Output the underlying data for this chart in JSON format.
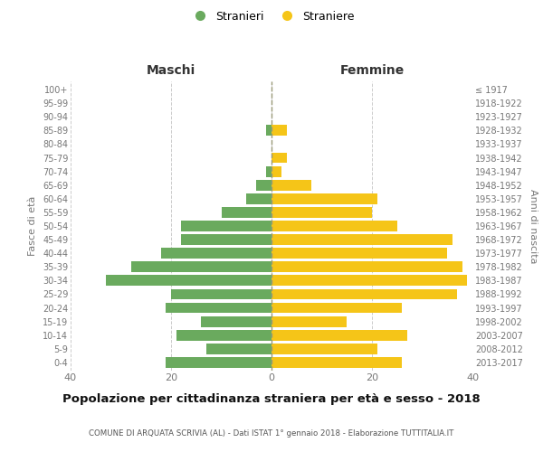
{
  "age_groups": [
    "0-4",
    "5-9",
    "10-14",
    "15-19",
    "20-24",
    "25-29",
    "30-34",
    "35-39",
    "40-44",
    "45-49",
    "50-54",
    "55-59",
    "60-64",
    "65-69",
    "70-74",
    "75-79",
    "80-84",
    "85-89",
    "90-94",
    "95-99",
    "100+"
  ],
  "birth_years": [
    "2013-2017",
    "2008-2012",
    "2003-2007",
    "1998-2002",
    "1993-1997",
    "1988-1992",
    "1983-1987",
    "1978-1982",
    "1973-1977",
    "1968-1972",
    "1963-1967",
    "1958-1962",
    "1953-1957",
    "1948-1952",
    "1943-1947",
    "1938-1942",
    "1933-1937",
    "1928-1932",
    "1923-1927",
    "1918-1922",
    "≤ 1917"
  ],
  "males": [
    21,
    13,
    19,
    14,
    21,
    20,
    33,
    28,
    22,
    18,
    18,
    10,
    5,
    3,
    1,
    0,
    0,
    1,
    0,
    0,
    0
  ],
  "females": [
    26,
    21,
    27,
    15,
    26,
    37,
    39,
    38,
    35,
    36,
    25,
    20,
    21,
    8,
    2,
    3,
    0,
    3,
    0,
    0,
    0
  ],
  "male_color": "#6aaa5e",
  "female_color": "#f5c518",
  "male_label": "Stranieri",
  "female_label": "Straniere",
  "title": "Popolazione per cittadinanza straniera per età e sesso - 2018",
  "subtitle": "COMUNE DI ARQUATA SCRIVIA (AL) - Dati ISTAT 1° gennaio 2018 - Elaborazione TUTTITALIA.IT",
  "left_header": "Maschi",
  "right_header": "Femmine",
  "ylabel_left": "Fasce di età",
  "ylabel_right": "Anni di nascita",
  "xlim": 40,
  "background_color": "#ffffff",
  "grid_color": "#cccccc"
}
